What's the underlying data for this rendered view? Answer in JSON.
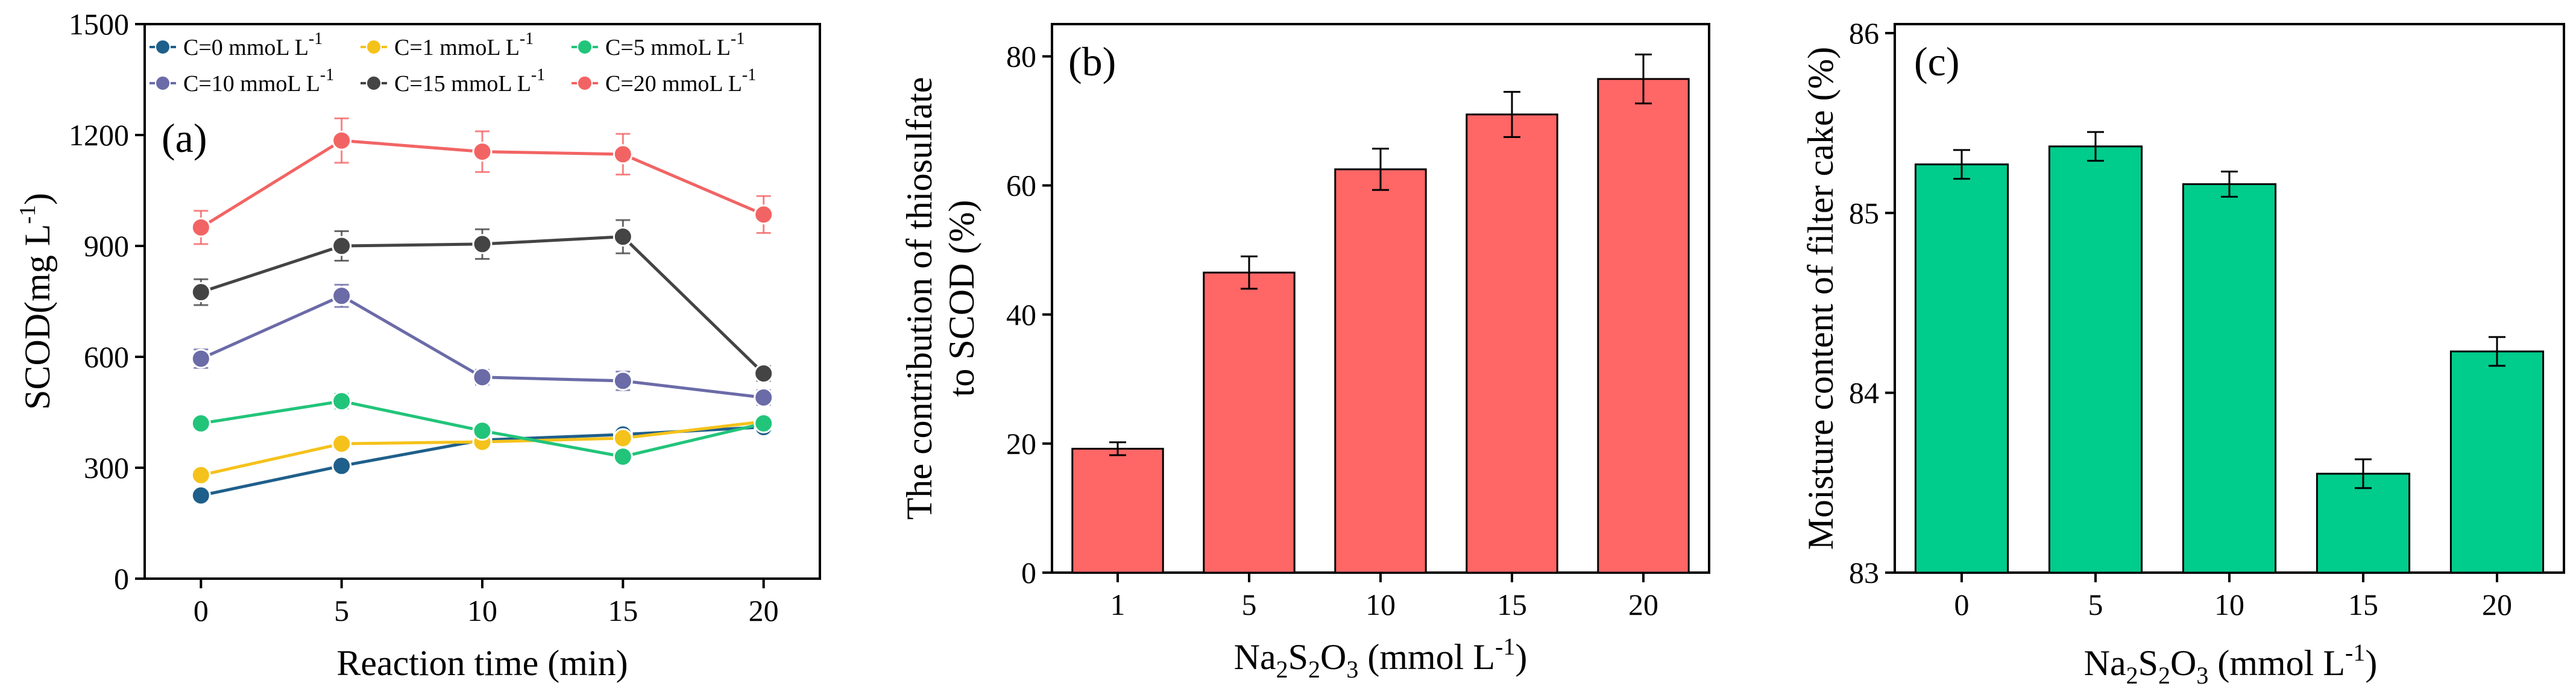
{
  "chart_data": [
    {
      "type": "line",
      "panel_label": "(a)",
      "xlabel": "Reaction time (min)",
      "ylabel": "SCOD(mg L-1)",
      "ylabel_base": "SCOD(mg L",
      "ylabel_sup": "-1",
      "ylabel_end": ")",
      "x": [
        0,
        5,
        10,
        15,
        20
      ],
      "xlim": [
        -2,
        22
      ],
      "ylim": [
        0,
        1500
      ],
      "xticks": [
        0,
        5,
        10,
        15,
        20
      ],
      "yticks": [
        0,
        300,
        600,
        900,
        1200,
        1500
      ],
      "series": [
        {
          "name": "C=0 mmoL L-1",
          "label_base": "C=0 mmoL L",
          "label_sup": "-1",
          "color": "#1f5f8b",
          "values": [
            225,
            305,
            375,
            390,
            410
          ],
          "errors": [
            15,
            15,
            15,
            15,
            15
          ]
        },
        {
          "name": "C=1 mmoL L-1",
          "label_base": "C=1 mmoL L",
          "label_sup": "-1",
          "color": "#f5c21b",
          "values": [
            280,
            365,
            370,
            380,
            425
          ],
          "errors": [
            15,
            15,
            15,
            15,
            15
          ]
        },
        {
          "name": "C=5 mmoL L-1",
          "label_base": "C=5 mmoL L",
          "label_sup": "-1",
          "color": "#22c47a",
          "values": [
            420,
            480,
            400,
            330,
            420
          ],
          "errors": [
            15,
            20,
            15,
            15,
            15
          ]
        },
        {
          "name": "C=10 mmoL L-1",
          "label_base": "C=10 mmoL L",
          "label_sup": "-1",
          "color": "#6b6ba8",
          "values": [
            595,
            765,
            545,
            535,
            490
          ],
          "errors": [
            25,
            30,
            20,
            25,
            20
          ]
        },
        {
          "name": "C=15 mmoL L-1",
          "label_base": "C=15 mmoL L",
          "label_sup": "-1",
          "color": "#444444",
          "values": [
            775,
            900,
            905,
            925,
            555
          ],
          "errors": [
            35,
            40,
            40,
            45,
            20
          ]
        },
        {
          "name": "C=20 mmoL L-1",
          "label_base": "C=20 mmoL L",
          "label_sup": "-1",
          "color": "#f26464",
          "values": [
            950,
            1185,
            1155,
            1148,
            985
          ],
          "errors": [
            45,
            60,
            55,
            55,
            50
          ]
        }
      ]
    },
    {
      "type": "bar",
      "panel_label": "(b)",
      "xlabel": "Na2S2O3 (mmol L-1)",
      "ylabel_line1": "The contribution of thiosulfate",
      "ylabel_line2": "to SCOD (%)",
      "categories": [
        "1",
        "5",
        "10",
        "15",
        "20"
      ],
      "values": [
        19.2,
        46.5,
        62.5,
        71.0,
        76.5
      ],
      "errors": [
        1.0,
        2.5,
        3.2,
        3.5,
        3.8
      ],
      "ylim": [
        0,
        85
      ],
      "yticks": [
        0,
        20,
        40,
        60,
        80
      ],
      "color": "#ff6666"
    },
    {
      "type": "bar",
      "panel_label": "(c)",
      "xlabel": "Na2S2O3 (mmol L-1)",
      "ylabel": "Moisture content of filter cake (%)",
      "categories": [
        "0",
        "5",
        "10",
        "15",
        "20"
      ],
      "values": [
        85.27,
        85.37,
        85.16,
        83.55,
        84.23
      ],
      "errors": [
        0.08,
        0.08,
        0.07,
        0.08,
        0.08
      ],
      "ylim": [
        83,
        86.05
      ],
      "yticks": [
        83,
        84,
        85,
        86
      ],
      "color": "#00cc8c"
    }
  ]
}
